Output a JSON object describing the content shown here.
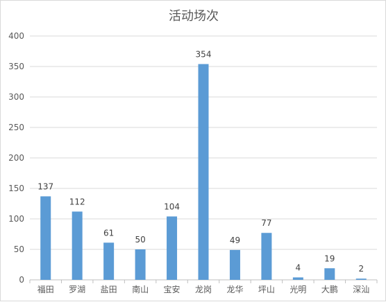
{
  "chart_data": {
    "type": "bar",
    "title": "活动场次",
    "categories": [
      "福田",
      "罗湖",
      "盐田",
      "南山",
      "宝安",
      "龙岗",
      "龙华",
      "坪山",
      "光明",
      "大鹏",
      "深汕"
    ],
    "values": [
      137,
      112,
      61,
      50,
      104,
      354,
      49,
      77,
      4,
      19,
      2
    ],
    "ylim": [
      0,
      400
    ],
    "yticks": [
      0,
      50,
      100,
      150,
      200,
      250,
      300,
      350,
      400
    ],
    "grid": true,
    "legend": "none",
    "bar_color": "#5b9bd5",
    "grid_color": "#d9d9d9"
  }
}
